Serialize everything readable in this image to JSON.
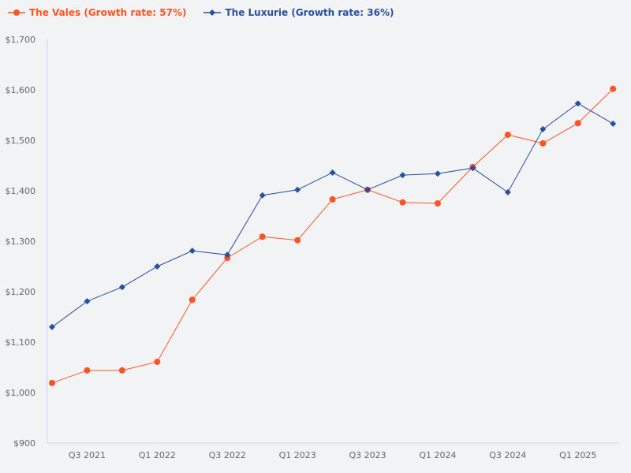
{
  "chart_data": {
    "type": "line",
    "title": "",
    "xlabel": "",
    "ylabel": "",
    "ylim": [
      900,
      1700
    ],
    "y_ticks": [
      900,
      1000,
      1100,
      1200,
      1300,
      1400,
      1500,
      1600,
      1700
    ],
    "y_tick_labels": [
      "$900",
      "$1,000",
      "$1,100",
      "$1,200",
      "$1,300",
      "$1,400",
      "$1,500",
      "$1,600",
      "$1,700"
    ],
    "x": [
      "Q2 2021",
      "Q3 2021",
      "Q4 2021",
      "Q1 2022",
      "Q2 2022",
      "Q3 2022",
      "Q4 2022",
      "Q1 2023",
      "Q2 2023",
      "Q3 2023",
      "Q4 2023",
      "Q1 2024",
      "Q2 2024",
      "Q3 2024",
      "Q4 2024",
      "Q1 2025",
      "Q2 2025"
    ],
    "x_tick_labels": [
      "Q3 2021",
      "Q1 2022",
      "Q3 2022",
      "Q1 2023",
      "Q3 2023",
      "Q1 2024",
      "Q3 2024",
      "Q1 2025"
    ],
    "grid": false,
    "legend_position": "top-left",
    "series": [
      {
        "name": "The Vales (Growth rate: 57%)",
        "color": "#fc5424",
        "marker": "circle",
        "values": [
          1019,
          1044,
          1044,
          1061,
          1184,
          1267,
          1309,
          1302,
          1383,
          1402,
          1377,
          1375,
          1447,
          1511,
          1494,
          1534,
          1602
        ]
      },
      {
        "name": "The Luxurie (Growth rate: 36%)",
        "color": "#2a4f9e",
        "marker": "diamond",
        "values": [
          1130,
          1181,
          1209,
          1250,
          1281,
          1273,
          1391,
          1402,
          1436,
          1402,
          1431,
          1434,
          1445,
          1397,
          1522,
          1573,
          1533
        ]
      }
    ]
  }
}
